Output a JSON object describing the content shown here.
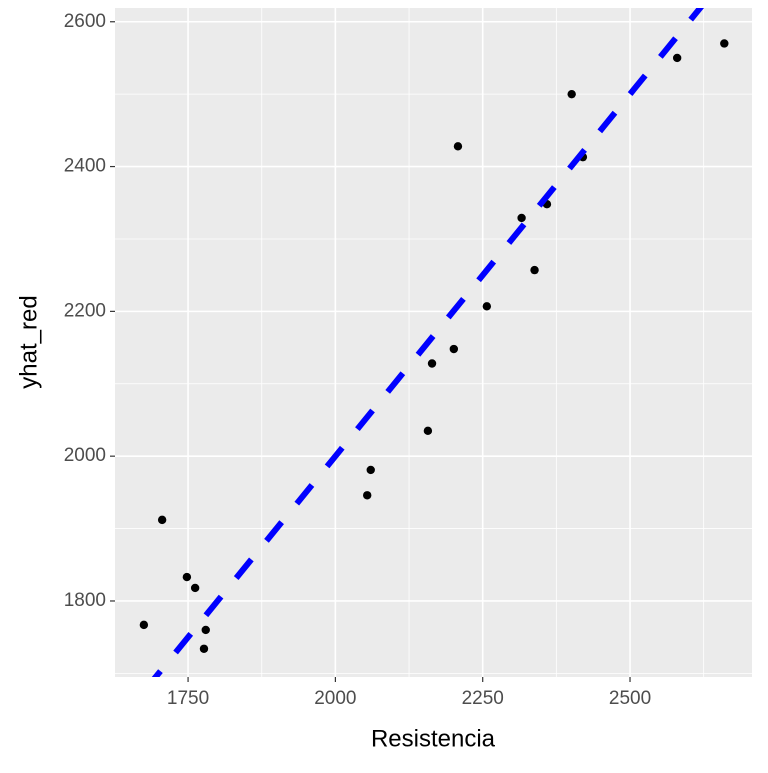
{
  "chart_data": {
    "type": "scatter",
    "xlabel": "Resistencia",
    "ylabel": "yhat_red",
    "x": [
      1675,
      1706,
      1748,
      1762,
      1780,
      1777,
      2054,
      2060,
      2157,
      2164,
      2201,
      2208,
      2257,
      2316,
      2338,
      2359,
      2401,
      2420,
      2580,
      2660
    ],
    "values": [
      1767,
      1912,
      1833,
      1818,
      1760,
      1734,
      1946,
      1981,
      2035,
      2128,
      2148,
      2428,
      2207,
      2329,
      2257,
      2348,
      2500,
      2413,
      2550,
      2570
    ],
    "color": "#000000",
    "reference_line": {
      "slope": 1,
      "intercept": 0,
      "color": "#0000ff"
    },
    "xlim": [
      1626,
      2707
    ],
    "ylim": [
      1695,
      2619
    ],
    "xticks": [
      1750,
      2000,
      2250,
      2500
    ],
    "yticks": [
      1800,
      2000,
      2200,
      2400,
      2600
    ],
    "xminorticks": [
      1625,
      1875,
      2125,
      2375,
      2625
    ],
    "yminorticks": [
      1700,
      1900,
      2100,
      2300,
      2500
    ],
    "grid": true
  }
}
